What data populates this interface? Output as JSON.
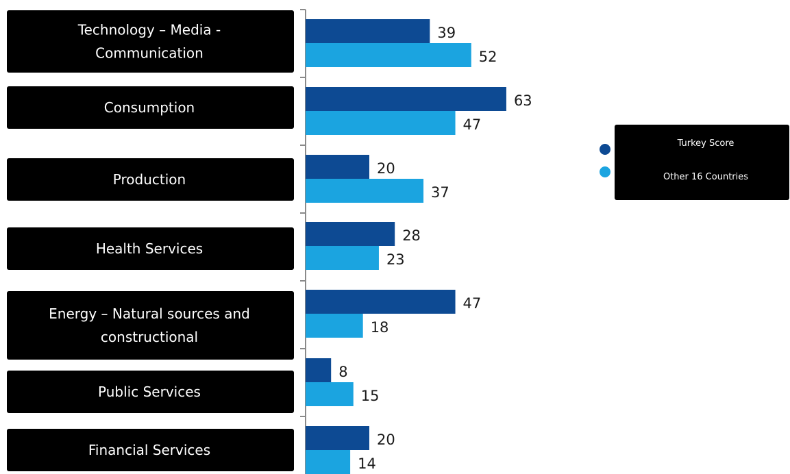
{
  "chart_data": {
    "type": "bar",
    "orientation": "horizontal",
    "categories": [
      "Technology – Media - Communication",
      "Consumption",
      "Production",
      "Health Services",
      "Energy – Natural sources and constructional",
      "Public Services",
      "Financial Services"
    ],
    "category_lines": [
      [
        "Technology – Media -",
        "Communication"
      ],
      [
        "Consumption"
      ],
      [
        "Production"
      ],
      [
        "Health Services"
      ],
      [
        "Energy – Natural sources and",
        "constructional"
      ],
      [
        "Public Services"
      ],
      [
        "Financial Services"
      ]
    ],
    "series": [
      {
        "name": "Turkey Score",
        "values": [
          39,
          63,
          20,
          28,
          47,
          8,
          20
        ],
        "color": "#0d4a93"
      },
      {
        "name": "Other 16 Countries",
        "values": [
          52,
          47,
          37,
          23,
          18,
          15,
          14
        ],
        "color": "#1ba4e0"
      }
    ],
    "xlim": [
      0,
      70
    ],
    "title": "",
    "xlabel": "",
    "ylabel": "",
    "grid": false,
    "legend_position": "right",
    "colors": {
      "label_box": "#000000",
      "label_text": "#ffffff",
      "axis": "#8a8a8a",
      "value_text": "#1a1a1a"
    }
  }
}
